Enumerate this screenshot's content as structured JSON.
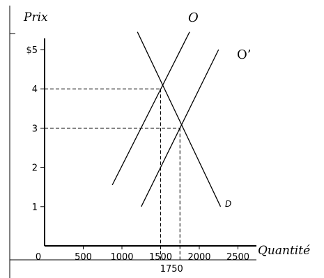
{
  "chart_data": {
    "type": "line",
    "title": "",
    "ylabel": "Prix",
    "xlabel": "Quantité",
    "xlim": [
      0,
      2500
    ],
    "ylim": [
      0,
      5
    ],
    "x_ticks": [
      {
        "value": 0,
        "label": "0"
      },
      {
        "value": 500,
        "label": "500"
      },
      {
        "value": 1000,
        "label": "1000"
      },
      {
        "value": 1500,
        "label": "1500"
      },
      {
        "value": 2000,
        "label": "2000"
      },
      {
        "value": 2500,
        "label": "2500"
      }
    ],
    "extra_x_label": {
      "value": 1750,
      "label": "1750"
    },
    "y_ticks": [
      {
        "value": 1,
        "label": "1"
      },
      {
        "value": 2,
        "label": "2"
      },
      {
        "value": 3,
        "label": "3"
      },
      {
        "value": 4,
        "label": "4"
      },
      {
        "value": 5,
        "label": "$5"
      }
    ],
    "grid": false,
    "series": [
      {
        "name": "O",
        "style": "italic",
        "points": [
          [
            875,
            1.55
          ],
          [
            1875,
            5.45
          ]
        ]
      },
      {
        "name": "O’",
        "style": "normal",
        "points": [
          [
            1250,
            1.0
          ],
          [
            2250,
            5.0
          ]
        ]
      },
      {
        "name": "D",
        "style": "italic-sans",
        "points": [
          [
            1200,
            5.45
          ],
          [
            2275,
            1.0
          ]
        ]
      }
    ],
    "equilibria": [
      {
        "x": 1500,
        "y": 4
      },
      {
        "x": 1750,
        "y": 3
      }
    ]
  }
}
